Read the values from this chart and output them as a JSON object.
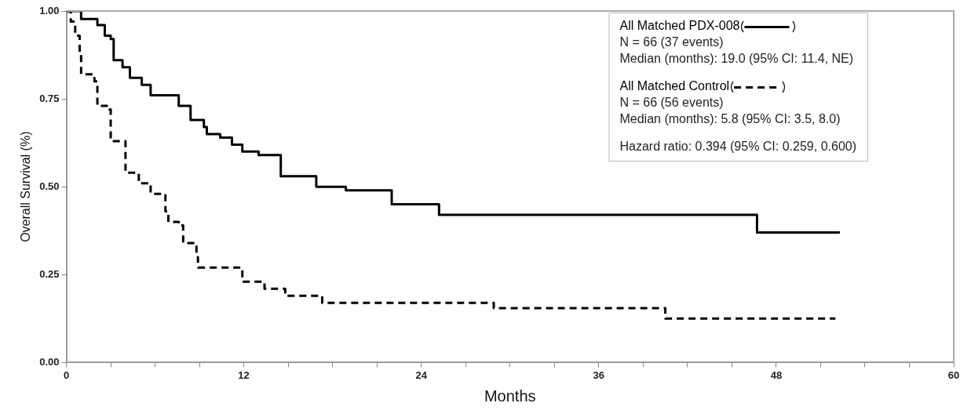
{
  "chart_data": {
    "type": "step",
    "xlabel": "Months",
    "ylabel": "Overall Survival (%)",
    "xlim": [
      0,
      60
    ],
    "xticks": [
      0,
      {
        "value": 3,
        "label": null
      },
      {
        "value": 6,
        "label": null
      },
      {
        "value": 9,
        "label": null
      },
      12,
      {
        "value": 15,
        "label": null
      },
      {
        "value": 18,
        "label": null
      },
      {
        "value": 21,
        "label": null
      },
      24,
      {
        "value": 27,
        "label": null
      },
      {
        "value": 30,
        "label": null
      },
      {
        "value": 33,
        "label": null
      },
      36,
      {
        "value": 39,
        "label": null
      },
      {
        "value": 42,
        "label": null
      },
      {
        "value": 45,
        "label": null
      },
      48,
      {
        "value": 51,
        "label": null
      },
      {
        "value": 54,
        "label": null
      },
      {
        "value": 57,
        "label": null
      },
      60
    ],
    "ylim": [
      0,
      1
    ],
    "yticks": [
      {
        "value": 0,
        "label": "0.00"
      },
      {
        "value": 0.25,
        "label": "0.25"
      },
      {
        "value": 0.5,
        "label": "0.50"
      },
      {
        "value": 0.75,
        "label": "0.75"
      },
      {
        "value": 1,
        "label": "1.00"
      }
    ],
    "grid": false,
    "legend": "top right",
    "marker": "none",
    "series": [
      {
        "name": "All Matched PDX-008",
        "color": "#000000",
        "line_style": "solid",
        "x": [
          0,
          1.0,
          2.1,
          2.6,
          3.0,
          3.2,
          3.8,
          4.3,
          5.1,
          5.7,
          7.6,
          8.4,
          9.3,
          9.5,
          10.4,
          11.2,
          11.9,
          13.0,
          14.5,
          16.9,
          18.9,
          22.0,
          25.2,
          46.7,
          52.3
        ],
        "values": [
          1.0,
          0.977,
          0.96,
          0.93,
          0.92,
          0.86,
          0.84,
          0.81,
          0.79,
          0.76,
          0.73,
          0.69,
          0.67,
          0.65,
          0.64,
          0.62,
          0.6,
          0.59,
          0.53,
          0.5,
          0.49,
          0.45,
          0.42,
          0.37,
          0.37
        ]
      },
      {
        "name": "All Matched Control",
        "color": "#000000",
        "line_style": "dashed",
        "x": [
          0,
          0.3,
          0.6,
          0.9,
          1.0,
          1.9,
          2.1,
          2.9,
          3.0,
          4.0,
          4.9,
          5.7,
          6.7,
          6.9,
          7.6,
          7.9,
          8.8,
          8.9,
          11.9,
          13.4,
          14.8,
          17.3,
          28.9,
          40.5,
          52.0
        ],
        "values": [
          1.0,
          0.97,
          0.93,
          0.88,
          0.82,
          0.8,
          0.73,
          0.72,
          0.63,
          0.54,
          0.51,
          0.48,
          0.43,
          0.4,
          0.39,
          0.34,
          0.3,
          0.27,
          0.23,
          0.21,
          0.19,
          0.17,
          0.155,
          0.125,
          0.125
        ]
      }
    ],
    "annotations": [
      "N = 66 (37 events)",
      "Median (months): 19.0 (95% CI: 11.4, NE)",
      "N = 66 (56 events)",
      "Median (months): 5.8 (95% CI: 3.5, 8.0)",
      "Hazard ratio: 0.394 (95% CI: 0.259, 0.600)"
    ]
  }
}
